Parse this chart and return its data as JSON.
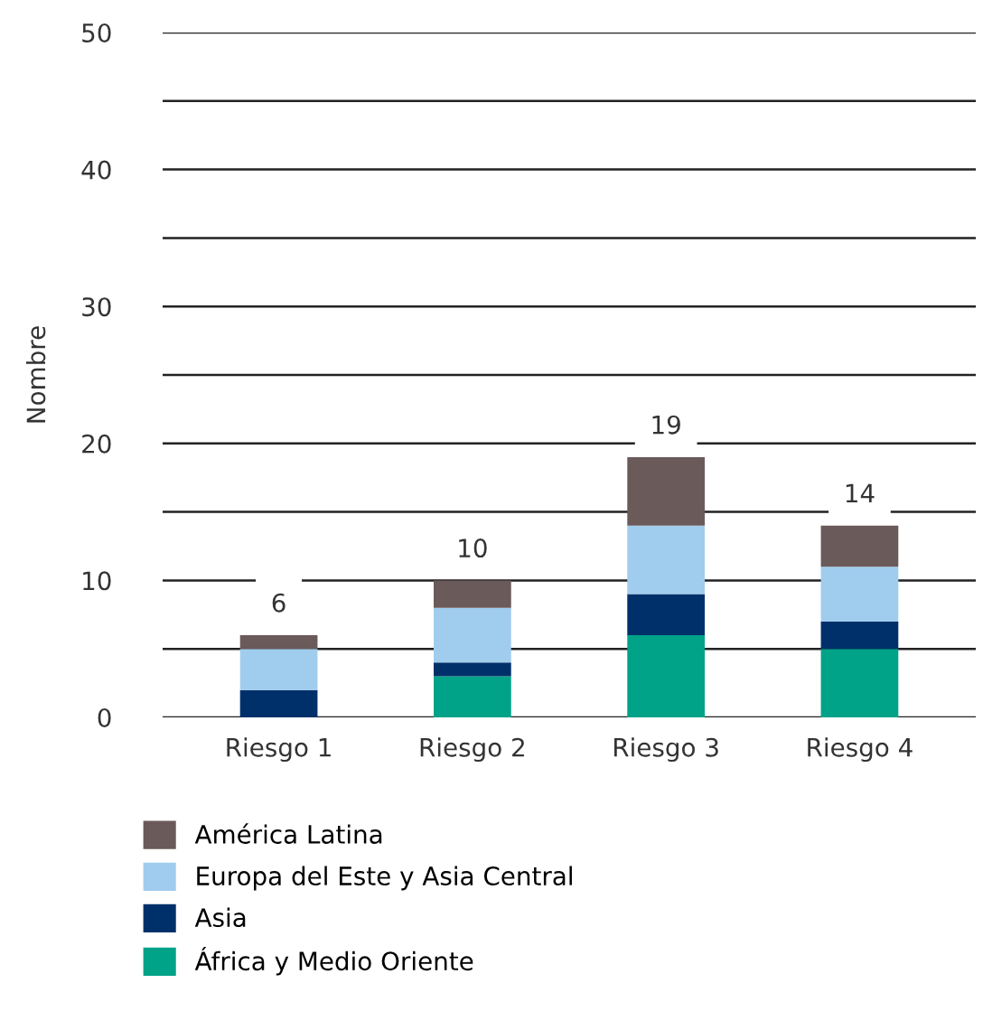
{
  "chart_data": {
    "type": "bar",
    "stacked": true,
    "ylabel": "Nombre",
    "categories": [
      "Riesgo 1",
      "Riesgo 2",
      "Riesgo 3",
      "Riesgo 4"
    ],
    "series": [
      {
        "name": "África y Medio Oriente",
        "color": "#00a288",
        "values": [
          0,
          3,
          6,
          5
        ]
      },
      {
        "name": "Asia",
        "color": "#00306a",
        "values": [
          2,
          1,
          3,
          2
        ]
      },
      {
        "name": "Europa del Este y Asia Central",
        "color": "#a0cdee",
        "values": [
          3,
          4,
          5,
          4
        ]
      },
      {
        "name": "América Latina",
        "color": "#6b5a5a",
        "values": [
          1,
          2,
          5,
          3
        ]
      }
    ],
    "totals": [
      "6",
      "10",
      "19",
      "14"
    ],
    "ylim": [
      0,
      50
    ],
    "yticks": [
      0,
      {
        "value": 5,
        "label": null
      },
      10,
      {
        "value": 15,
        "label": null
      },
      20,
      {
        "value": 25,
        "label": null
      },
      30,
      {
        "value": 35,
        "label": null
      },
      40,
      {
        "value": 45,
        "label": null
      },
      50
    ],
    "grid": "y",
    "legend": "bottom"
  }
}
